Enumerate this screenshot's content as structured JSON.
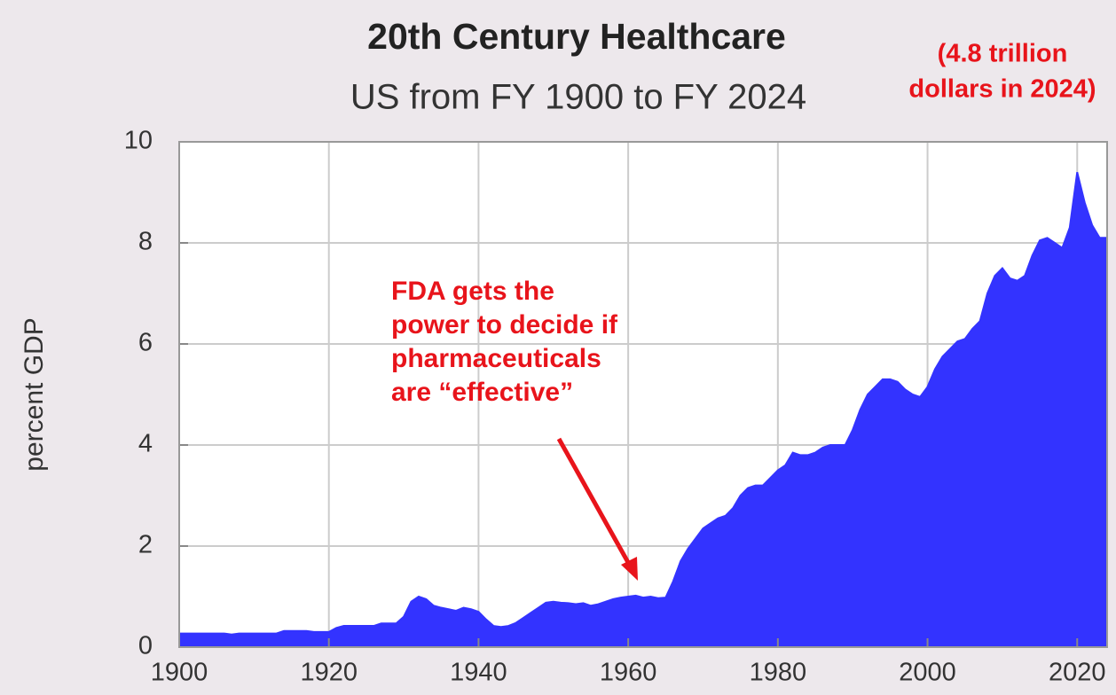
{
  "chart_data": {
    "type": "area",
    "title": "20th Century Healthcare",
    "subtitle": "US from FY 1900 to FY 2024",
    "ylabel": "percent GDP",
    "annotation": [
      "FDA gets the",
      "power to decide if",
      "pharmaceuticals",
      "are “effective”"
    ],
    "side_note": [
      "(4.8 trillion",
      "dollars in 2024)"
    ],
    "color": "#3333ff",
    "grid": true,
    "x": [
      1900,
      1901,
      1902,
      1903,
      1904,
      1905,
      1906,
      1907,
      1908,
      1909,
      1910,
      1911,
      1912,
      1913,
      1914,
      1915,
      1916,
      1917,
      1918,
      1919,
      1920,
      1921,
      1922,
      1923,
      1924,
      1925,
      1926,
      1927,
      1928,
      1929,
      1930,
      1931,
      1932,
      1933,
      1934,
      1935,
      1936,
      1937,
      1938,
      1939,
      1940,
      1941,
      1942,
      1943,
      1944,
      1945,
      1946,
      1947,
      1948,
      1949,
      1950,
      1951,
      1952,
      1953,
      1954,
      1955,
      1956,
      1957,
      1958,
      1959,
      1960,
      1961,
      1962,
      1963,
      1964,
      1965,
      1966,
      1967,
      1968,
      1969,
      1970,
      1971,
      1972,
      1973,
      1974,
      1975,
      1976,
      1977,
      1978,
      1979,
      1980,
      1981,
      1982,
      1983,
      1984,
      1985,
      1986,
      1987,
      1988,
      1989,
      1990,
      1991,
      1992,
      1993,
      1994,
      1995,
      1996,
      1997,
      1998,
      1999,
      2000,
      2001,
      2002,
      2003,
      2004,
      2005,
      2006,
      2007,
      2008,
      2009,
      2010,
      2011,
      2012,
      2013,
      2014,
      2015,
      2016,
      2017,
      2018,
      2019,
      2020,
      2021,
      2022,
      2023,
      2024
    ],
    "values": [
      0.27,
      0.27,
      0.27,
      0.27,
      0.27,
      0.27,
      0.27,
      0.25,
      0.27,
      0.27,
      0.27,
      0.27,
      0.27,
      0.27,
      0.32,
      0.32,
      0.32,
      0.32,
      0.3,
      0.3,
      0.3,
      0.38,
      0.42,
      0.42,
      0.42,
      0.42,
      0.42,
      0.47,
      0.47,
      0.47,
      0.6,
      0.9,
      1.0,
      0.95,
      0.82,
      0.78,
      0.75,
      0.72,
      0.78,
      0.75,
      0.7,
      0.55,
      0.42,
      0.4,
      0.42,
      0.48,
      0.58,
      0.68,
      0.78,
      0.88,
      0.9,
      0.88,
      0.87,
      0.85,
      0.87,
      0.82,
      0.85,
      0.9,
      0.95,
      0.98,
      1.0,
      1.02,
      0.98,
      1.0,
      0.97,
      0.98,
      1.3,
      1.7,
      1.95,
      2.15,
      2.35,
      2.45,
      2.55,
      2.6,
      2.75,
      3.0,
      3.15,
      3.2,
      3.2,
      3.35,
      3.5,
      3.6,
      3.85,
      3.8,
      3.8,
      3.85,
      3.95,
      4.0,
      4.0,
      4.0,
      4.3,
      4.7,
      5.0,
      5.15,
      5.3,
      5.3,
      5.25,
      5.1,
      5.0,
      4.95,
      5.15,
      5.5,
      5.75,
      5.9,
      6.05,
      6.1,
      6.3,
      6.45,
      7.0,
      7.35,
      7.5,
      7.3,
      7.25,
      7.35,
      7.75,
      8.05,
      8.1,
      8.0,
      7.9,
      8.3,
      9.4,
      8.8,
      8.35,
      8.1,
      8.1
    ],
    "xlim": [
      1900,
      2024
    ],
    "xticks": [
      1900,
      1920,
      1940,
      1960,
      1980,
      2000,
      2020
    ],
    "ylim": [
      0,
      10
    ],
    "yticks": [
      0,
      2,
      4,
      6,
      8,
      10
    ]
  }
}
